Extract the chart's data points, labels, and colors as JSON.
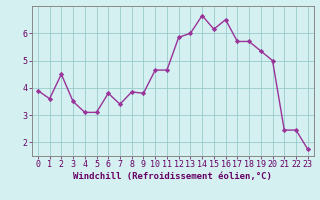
{
  "x": [
    0,
    1,
    2,
    3,
    4,
    5,
    6,
    7,
    8,
    9,
    10,
    11,
    12,
    13,
    14,
    15,
    16,
    17,
    18,
    19,
    20,
    21,
    22,
    23
  ],
  "y": [
    3.9,
    3.6,
    4.5,
    3.5,
    3.1,
    3.1,
    3.8,
    3.4,
    3.85,
    3.8,
    4.65,
    4.65,
    5.85,
    6.0,
    6.65,
    6.15,
    6.5,
    5.7,
    5.7,
    5.35,
    5.0,
    2.45,
    2.45,
    1.75
  ],
  "line_color": "#993399",
  "marker": "D",
  "markersize": 2.2,
  "linewidth": 1.0,
  "background_color": "#d4f0f0",
  "grid_color": "#99cccc",
  "xlabel": "Windchill (Refroidissement éolien,°C)",
  "xlabel_fontsize": 6.5,
  "tick_fontsize": 6.0,
  "ylim": [
    1.5,
    7.0
  ],
  "yticks": [
    2,
    3,
    4,
    5,
    6
  ],
  "xlim": [
    -0.5,
    23.5
  ],
  "xticks": [
    0,
    1,
    2,
    3,
    4,
    5,
    6,
    7,
    8,
    9,
    10,
    11,
    12,
    13,
    14,
    15,
    16,
    17,
    18,
    19,
    20,
    21,
    22,
    23
  ],
  "spine_color": "#888888",
  "tick_color": "#660066",
  "xlabel_color": "#660066",
  "ylabel_color": "#660066"
}
